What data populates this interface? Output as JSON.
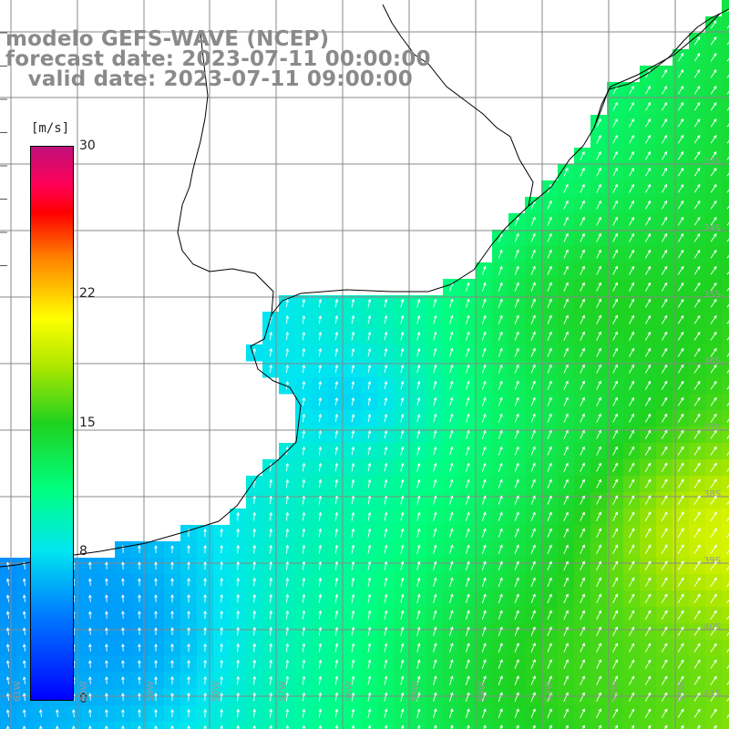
{
  "header": {
    "line1": "modelo GEFS-WAVE (NCEP)",
    "line2": "forecast date: 2023-07-11 00:00:00",
    "line3": "   valid date: 2023-07-11 09:00:00"
  },
  "legend": {
    "unit": "[m/s]",
    "ticks": [
      {
        "value": 30,
        "label": "30"
      },
      {
        "value": 22,
        "label": "22"
      },
      {
        "value": 15,
        "label": "15"
      },
      {
        "value": 8,
        "label": "8"
      },
      {
        "value": 0,
        "label": "0"
      }
    ],
    "range": [
      0,
      30
    ],
    "colors": [
      "#0000ff",
      "#0078ff",
      "#00e6f0",
      "#00ff80",
      "#1fd21f",
      "#aae600",
      "#ffff00",
      "#ff8000",
      "#ff0000",
      "#c0107a"
    ]
  },
  "map": {
    "lat_labels": [
      "33S",
      "34S",
      "35S",
      "36S",
      "37S",
      "38S",
      "39S",
      "40S",
      "41S"
    ],
    "lon_labels": [
      "61W",
      "60W",
      "59W",
      "58W",
      "57W",
      "56W",
      "55W",
      "54W",
      "53W",
      "52W",
      "51W"
    ],
    "gridline_color": "#888888",
    "coast_color": "#000000",
    "arrow_color": "#ffffff"
  }
}
